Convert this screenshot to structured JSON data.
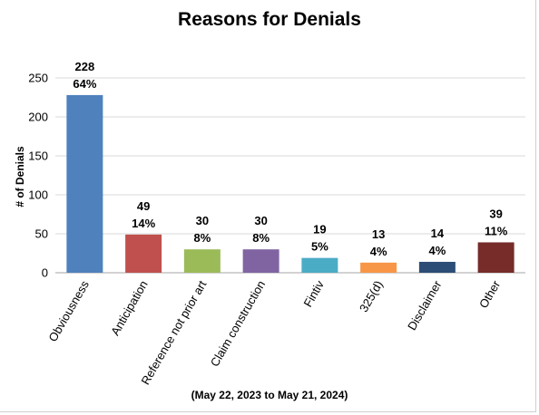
{
  "chart_data": {
    "type": "bar",
    "title": "Reasons for Denials",
    "subtitle": "(May 22, 2023 to May 21, 2024)",
    "xlabel": "",
    "ylabel": "# of Denials",
    "ylim": [
      0,
      250
    ],
    "yticks": [
      0,
      50,
      100,
      150,
      200,
      250
    ],
    "grid": true,
    "categories": [
      "Obviousness",
      "Anticipation",
      "Reference not prior art",
      "Claim construction",
      "Fintiv",
      "325(d)",
      "Disclaimer",
      "Other"
    ],
    "values": [
      228,
      49,
      30,
      30,
      19,
      13,
      14,
      39
    ],
    "percent_labels": [
      "64%",
      "14%",
      "8%",
      "8%",
      "5%",
      "4%",
      "4%",
      "11%"
    ],
    "colors": [
      "#4f81bd",
      "#c0504d",
      "#9bbb59",
      "#8064a2",
      "#4bacc6",
      "#f79646",
      "#2c4d75",
      "#772c2a"
    ]
  }
}
